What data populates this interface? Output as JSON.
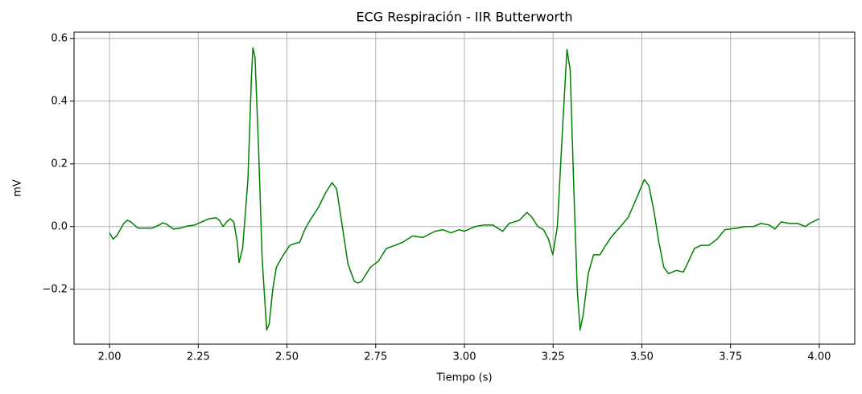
{
  "chart_data": {
    "type": "line",
    "title": "ECG Respiración - IIR Butterworth",
    "x_label": "Tiempo (s)",
    "y_label": "mV",
    "x": [
      2.0,
      2.01,
      2.02,
      2.04,
      2.05,
      2.06,
      2.08,
      2.1,
      2.12,
      2.14,
      2.15,
      2.16,
      2.18,
      2.2,
      2.22,
      2.24,
      2.26,
      2.28,
      2.3,
      2.31,
      2.32,
      2.33,
      2.34,
      2.35,
      2.36,
      2.365,
      2.375,
      2.39,
      2.4,
      2.404,
      2.41,
      2.42,
      2.43,
      2.44,
      2.443,
      2.45,
      2.46,
      2.47,
      2.48,
      2.49,
      2.508,
      2.52,
      2.536,
      2.55,
      2.565,
      2.588,
      2.61,
      2.627,
      2.64,
      2.656,
      2.672,
      2.69,
      2.7,
      2.71,
      2.735,
      2.758,
      2.78,
      2.804,
      2.826,
      2.854,
      2.883,
      2.917,
      2.94,
      2.962,
      2.985,
      3.0,
      3.03,
      3.055,
      3.08,
      3.108,
      3.126,
      3.155,
      3.176,
      3.19,
      3.207,
      3.223,
      3.237,
      3.249,
      3.262,
      3.276,
      3.289,
      3.298,
      3.309,
      3.318,
      3.326,
      3.335,
      3.349,
      3.364,
      3.382,
      3.398,
      3.416,
      3.44,
      3.462,
      3.485,
      3.507,
      3.52,
      3.534,
      3.548,
      3.562,
      3.575,
      3.598,
      3.617,
      3.632,
      3.648,
      3.666,
      3.689,
      3.712,
      3.734,
      3.768,
      3.79,
      3.814,
      3.836,
      3.859,
      3.875,
      3.893,
      3.916,
      3.939,
      3.961,
      3.973,
      4.0
    ],
    "series": [
      {
        "name": "ECG",
        "color": "green",
        "values": [
          -0.02,
          -0.04,
          -0.03,
          0.01,
          0.02,
          0.015,
          -0.005,
          -0.005,
          -0.005,
          0.005,
          0.012,
          0.008,
          -0.008,
          -0.005,
          0.002,
          0.005,
          0.015,
          0.025,
          0.028,
          0.02,
          0.0,
          0.015,
          0.025,
          0.015,
          -0.05,
          -0.115,
          -0.07,
          0.15,
          0.48,
          0.57,
          0.54,
          0.25,
          -0.1,
          -0.28,
          -0.33,
          -0.31,
          -0.2,
          -0.13,
          -0.11,
          -0.09,
          -0.06,
          -0.055,
          -0.05,
          -0.01,
          0.02,
          0.06,
          0.11,
          0.14,
          0.12,
          0.0,
          -0.12,
          -0.175,
          -0.18,
          -0.175,
          -0.13,
          -0.11,
          -0.07,
          -0.06,
          -0.05,
          -0.03,
          -0.035,
          -0.015,
          -0.01,
          -0.02,
          -0.01,
          -0.015,
          0.0,
          0.005,
          0.005,
          -0.015,
          0.01,
          0.02,
          0.045,
          0.03,
          0.0,
          -0.01,
          -0.04,
          -0.09,
          0.0,
          0.3,
          0.565,
          0.5,
          0.1,
          -0.2,
          -0.33,
          -0.28,
          -0.15,
          -0.09,
          -0.09,
          -0.06,
          -0.03,
          0.0,
          0.03,
          0.09,
          0.15,
          0.13,
          0.05,
          -0.05,
          -0.13,
          -0.15,
          -0.14,
          -0.145,
          -0.11,
          -0.07,
          -0.06,
          -0.06,
          -0.04,
          -0.01,
          -0.005,
          0.0,
          0.0,
          0.01,
          0.005,
          -0.008,
          0.015,
          0.01,
          0.01,
          0.0,
          0.01,
          0.025
        ]
      }
    ],
    "xlim": [
      1.9,
      4.1
    ],
    "xticks": [
      {
        "value": 2.0,
        "label": "2.00"
      },
      {
        "value": 2.25,
        "label": "2.25"
      },
      {
        "value": 2.5,
        "label": "2.50"
      },
      {
        "value": 2.75,
        "label": "2.75"
      },
      {
        "value": 3.0,
        "label": "3.00"
      },
      {
        "value": 3.25,
        "label": "3.25"
      },
      {
        "value": 3.5,
        "label": "3.50"
      },
      {
        "value": 3.75,
        "label": "3.75"
      },
      {
        "value": 4.0,
        "label": "4.00"
      }
    ],
    "ylim": [
      -0.375,
      0.62
    ],
    "yticks": [
      {
        "value": -0.2,
        "label": "−0.2"
      },
      {
        "value": 0.0,
        "label": "0.0"
      },
      0.2,
      0.4,
      0.6
    ],
    "grid": true
  }
}
